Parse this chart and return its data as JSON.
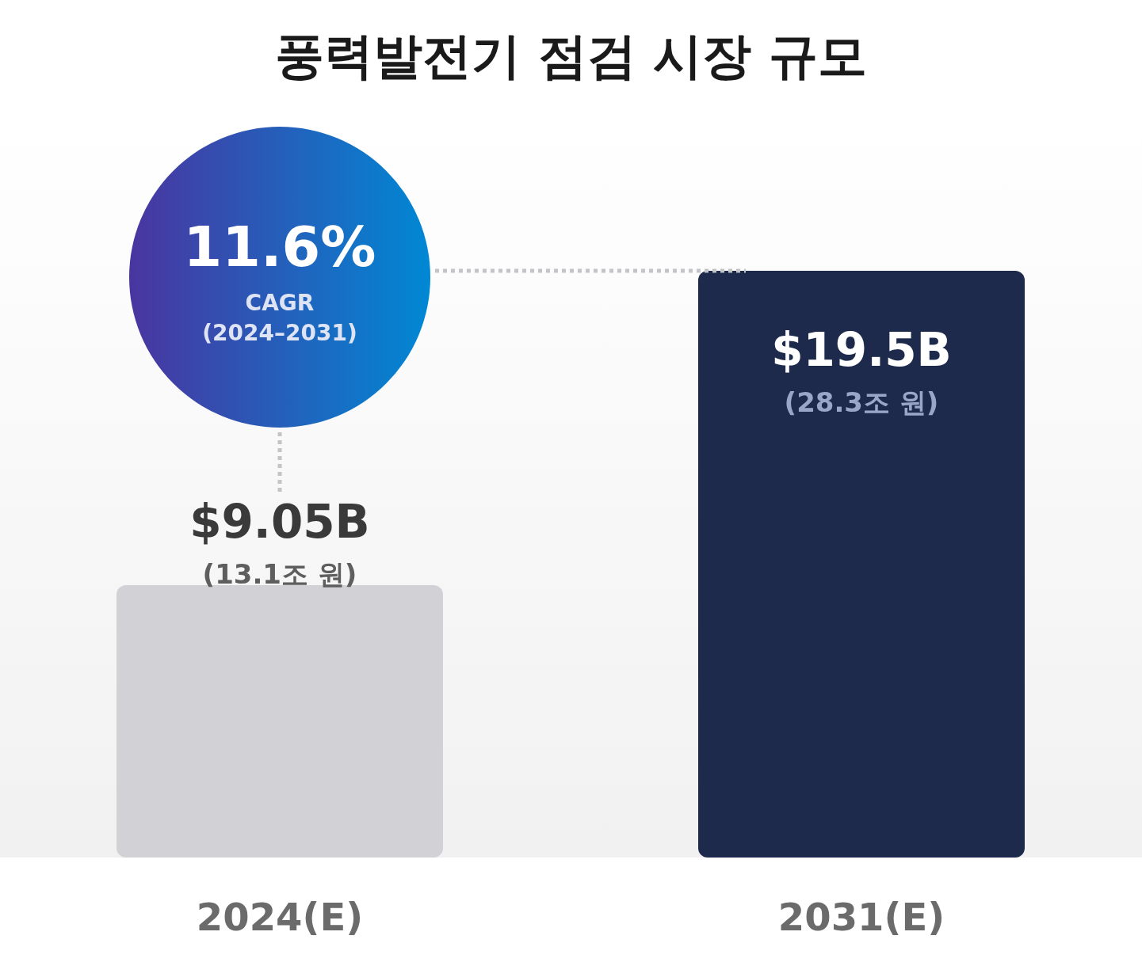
{
  "chart_data": {
    "type": "bar",
    "title": "풍력발전기 점검 시장 규모",
    "categories": [
      "2024(E)",
      "2031(E)"
    ],
    "values": [
      9.05,
      19.5
    ],
    "colors": [
      "#d1d1d6",
      "#1e2a4c"
    ],
    "data_labels": true,
    "value_labels": [
      "$9.05B",
      "$19.5B"
    ],
    "annotations": [
      "(13.1조 원)",
      "(28.3조 원)",
      "11.6%",
      "CAGR",
      "(2024–2031)"
    ]
  }
}
